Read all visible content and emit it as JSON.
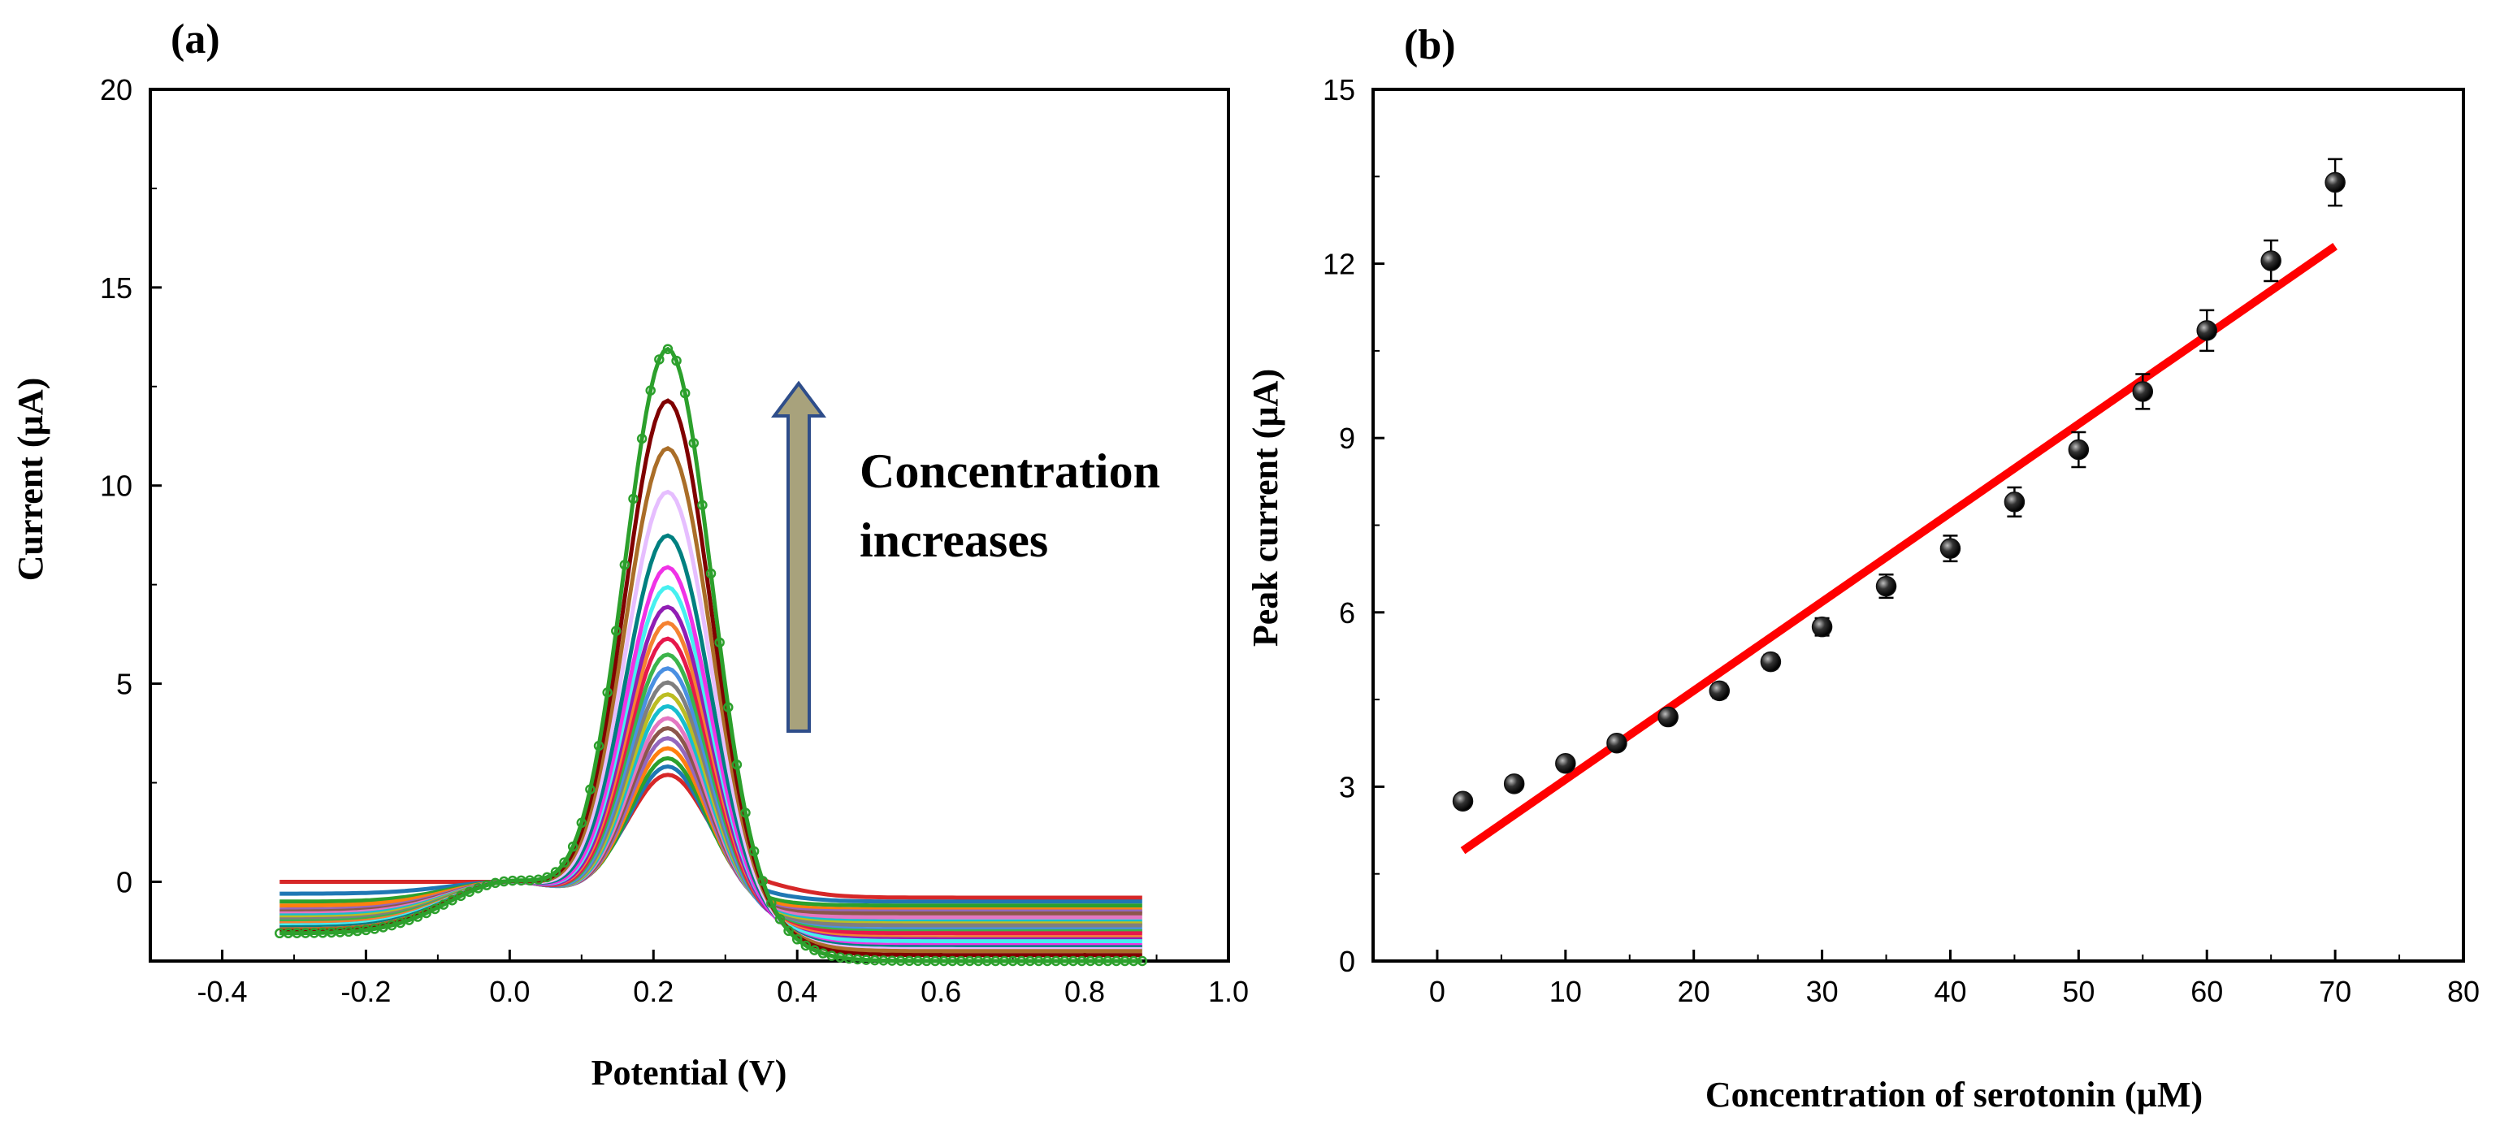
{
  "colors": {
    "fit_line": "#ff0000",
    "arrow_fill": "#a8a27c",
    "arrow_stroke": "#2e4d8a",
    "marker": "#111111",
    "curve_palette": [
      "#d62728",
      "#1f77b4",
      "#2ca02c",
      "#ff7f0e",
      "#9467bd",
      "#8c564b",
      "#e377c2",
      "#17becf",
      "#bcbd22",
      "#7f7f7f",
      "#4a90e2",
      "#3cb44b",
      "#e6194b",
      "#f58231",
      "#911eb4",
      "#46f0f0",
      "#f032e6",
      "#008080",
      "#e6beff",
      "#aa6e28",
      "#800000",
      "#2ca02c"
    ]
  },
  "chart_data": [
    {
      "panel_label": "(a)",
      "type": "line",
      "title": "",
      "xlabel": "Potential (V)",
      "ylabel": "Current (µA)",
      "xlim": [
        -0.5,
        1.0
      ],
      "ylim": [
        -2,
        20
      ],
      "xticks": [
        "-0.4",
        "-0.2",
        "0.0",
        "0.2",
        "0.4",
        "0.6",
        "0.8",
        "1.0"
      ],
      "xtick_values": [
        -0.4,
        -0.2,
        0.0,
        0.2,
        0.4,
        0.6,
        0.8,
        1.0
      ],
      "yticks": [
        "0",
        "5",
        "10",
        "15",
        "20"
      ],
      "ytick_values": [
        0,
        5,
        10,
        15,
        20
      ],
      "x_range": [
        -0.32,
        0.88
      ],
      "peak_potential": 0.22,
      "peak_currents": [
        2.7,
        2.9,
        3.1,
        3.35,
        3.6,
        3.85,
        4.1,
        4.4,
        4.7,
        5.0,
        5.35,
        5.7,
        6.1,
        6.5,
        6.9,
        7.4,
        7.9,
        8.7,
        9.8,
        10.9,
        12.1,
        13.4
      ],
      "start_currents": [
        0.0,
        -0.3,
        -0.5,
        -0.6,
        -0.7,
        -0.75,
        -0.8,
        -0.85,
        -0.9,
        -0.95,
        -1.0,
        -1.0,
        -1.05,
        -1.05,
        -1.1,
        -1.1,
        -1.15,
        -1.15,
        -1.2,
        -1.2,
        -1.25,
        -1.3
      ],
      "end_currents": [
        -0.4,
        -0.5,
        -0.6,
        -0.7,
        -0.75,
        -0.8,
        -0.9,
        -1.0,
        -1.05,
        -1.1,
        -1.2,
        -1.25,
        -1.3,
        -1.4,
        -1.45,
        -1.5,
        -1.6,
        -1.65,
        -1.7,
        -1.75,
        -1.85,
        -2.0
      ],
      "annotation": "Concentration increases",
      "annotation_lines": [
        "Concentration",
        "increases"
      ]
    },
    {
      "panel_label": "(b)",
      "type": "scatter",
      "title": "",
      "xlabel": "Concentration of serotonin (µM)",
      "ylabel": "Peak current (µA)",
      "xlim": [
        -5,
        80
      ],
      "ylim": [
        0,
        15
      ],
      "xticks": [
        "0",
        "10",
        "20",
        "30",
        "40",
        "50",
        "60",
        "70",
        "80"
      ],
      "xtick_values": [
        0,
        10,
        20,
        30,
        40,
        50,
        60,
        70,
        80
      ],
      "yticks": [
        "0",
        "3",
        "6",
        "9",
        "12",
        "15"
      ],
      "ytick_values": [
        0,
        3,
        6,
        9,
        12,
        15
      ],
      "x": [
        2,
        6,
        10,
        14,
        18,
        22,
        26,
        30,
        35,
        40,
        45,
        50,
        55,
        60,
        65,
        70
      ],
      "y": [
        2.75,
        3.05,
        3.4,
        3.75,
        4.2,
        4.65,
        5.15,
        5.75,
        6.45,
        7.1,
        7.9,
        8.8,
        9.8,
        10.85,
        12.05,
        13.4
      ],
      "y_err": [
        0.08,
        0.08,
        0.1,
        0.1,
        0.1,
        0.12,
        0.12,
        0.15,
        0.2,
        0.22,
        0.25,
        0.3,
        0.3,
        0.35,
        0.35,
        0.4
      ],
      "fit": {
        "x": [
          2,
          70
        ],
        "y": [
          1.9,
          12.3
        ]
      }
    }
  ]
}
